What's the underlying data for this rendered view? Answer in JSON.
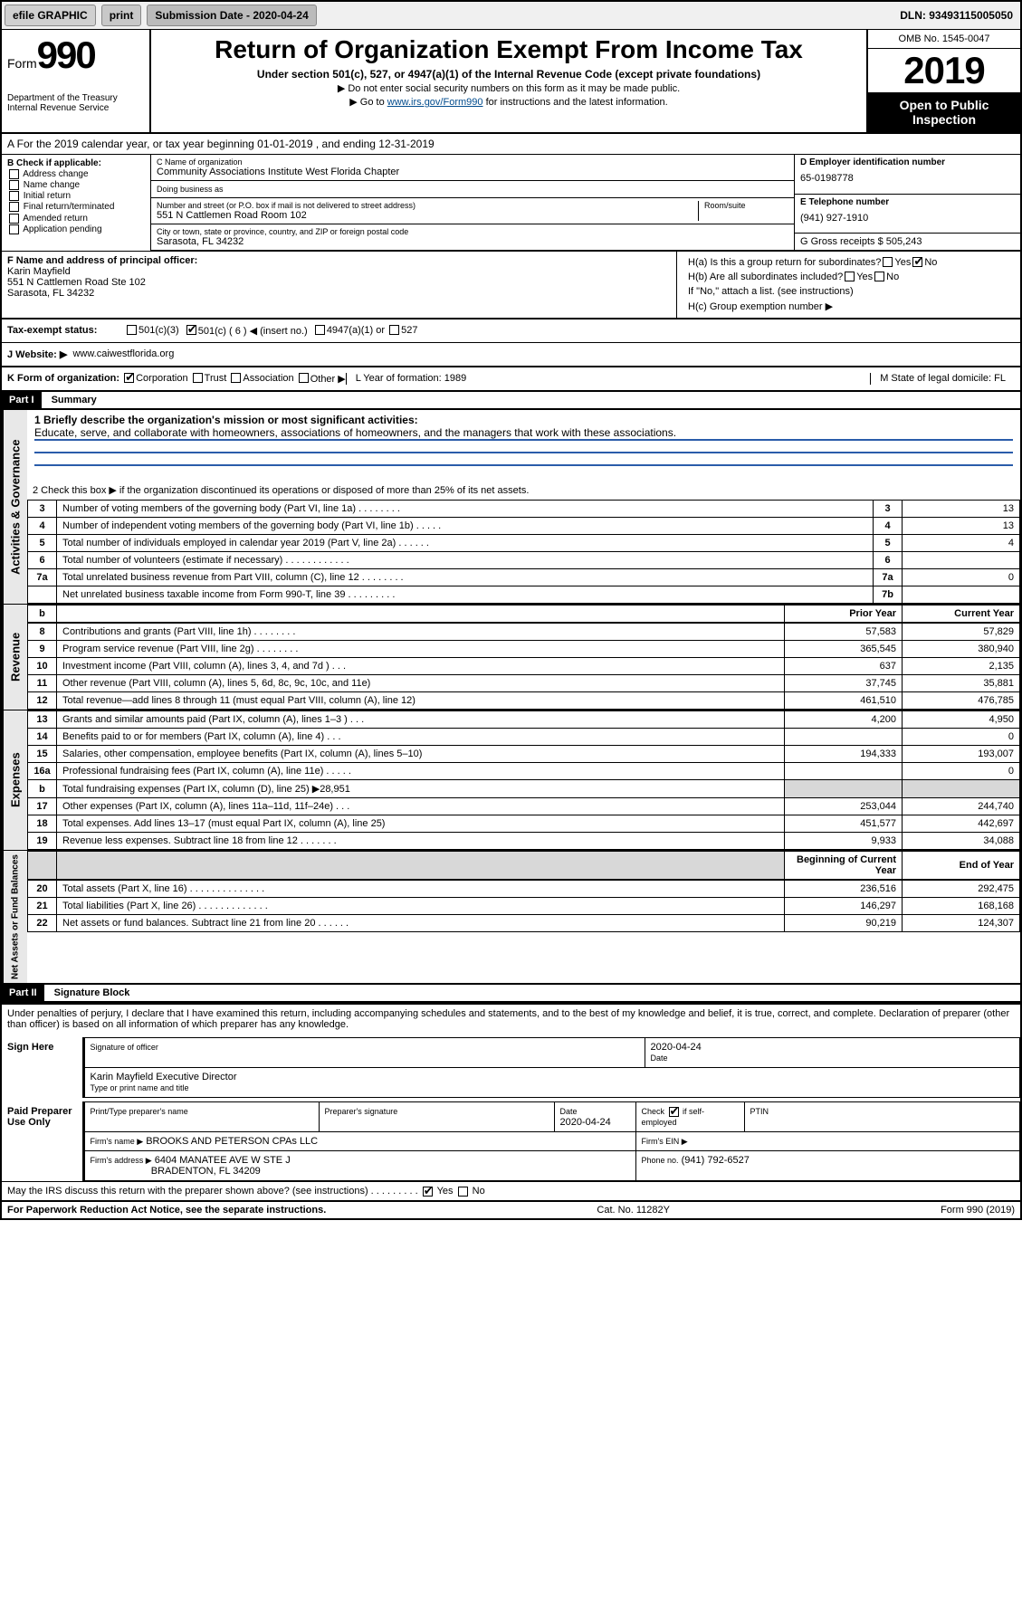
{
  "topbar": {
    "efile": "efile GRAPHIC",
    "print": "print",
    "subdate_label": "Submission Date - 2020-04-24",
    "dln": "DLN: 93493115005050"
  },
  "header": {
    "form_prefix": "Form",
    "form_number": "990",
    "dept": "Department of the Treasury",
    "irs": "Internal Revenue Service",
    "title": "Return of Organization Exempt From Income Tax",
    "subtitle": "Under section 501(c), 527, or 4947(a)(1) of the Internal Revenue Code (except private foundations)",
    "note1": "▶ Do not enter social security numbers on this form as it may be made public.",
    "note2_pre": "▶ Go to ",
    "note2_link": "www.irs.gov/Form990",
    "note2_post": " for instructions and the latest information.",
    "omb": "OMB No. 1545-0047",
    "year": "2019",
    "open": "Open to Public Inspection"
  },
  "line_a": "A   For the 2019 calendar year, or tax year beginning 01-01-2019   , and ending 12-31-2019",
  "checkb": {
    "title": "B Check if applicable:",
    "items": [
      "Address change",
      "Name change",
      "Initial return",
      "Final return/terminated",
      "Amended return",
      "Application pending"
    ]
  },
  "org": {
    "name_lbl": "C Name of organization",
    "name": "Community Associations Institute West Florida Chapter",
    "dba_lbl": "Doing business as",
    "addr_lbl": "Number and street (or P.O. box if mail is not delivered to street address)",
    "room_lbl": "Room/suite",
    "addr": "551 N Cattlemen Road Room 102",
    "city_lbl": "City or town, state or province, country, and ZIP or foreign postal code",
    "city": "Sarasota, FL  34232"
  },
  "d": {
    "ein_lbl": "D Employer identification number",
    "ein": "65-0198778",
    "phone_lbl": "E Telephone number",
    "phone": "(941) 927-1910",
    "gross_lbl": "G Gross receipts $ 505,243"
  },
  "f": {
    "lbl": "F  Name and address of principal officer:",
    "name": "Karin Mayfield",
    "addr1": "551 N Cattlemen Road Ste 102",
    "addr2": "Sarasota, FL  34232"
  },
  "h": {
    "ha": "H(a)  Is this a group return for subordinates?",
    "hb": "H(b)  Are all subordinates included?",
    "hb_note": "If \"No,\" attach a list. (see instructions)",
    "hc": "H(c)  Group exemption number ▶",
    "yes": "Yes",
    "no": "No"
  },
  "i": {
    "lbl": "Tax-exempt status:",
    "c3": "501(c)(3)",
    "c": "501(c) ( 6 ) ◀ (insert no.)",
    "a1": "4947(a)(1) or",
    "s527": "527"
  },
  "j": {
    "lbl": "J    Website: ▶",
    "val": "www.caiwestflorida.org"
  },
  "k": {
    "lbl": "K Form of organization:",
    "corp": "Corporation",
    "trust": "Trust",
    "assoc": "Association",
    "other": "Other ▶"
  },
  "l": {
    "lbl": "L Year of formation: 1989"
  },
  "m": {
    "lbl": "M State of legal domicile: FL"
  },
  "parts": {
    "p1": "Part I",
    "p1_title": "Summary",
    "p2": "Part II",
    "p2_title": "Signature Block"
  },
  "summary": {
    "line1": "1  Briefly describe the organization's mission or most significant activities:",
    "mission": "Educate, serve, and collaborate with homeowners, associations of homeowners, and the managers that work with these associations.",
    "line2": "2   Check this box ▶        if the organization discontinued its operations or disposed of more than 25% of its net assets.",
    "rows_top": [
      {
        "n": "3",
        "d": "Number of voting members of the governing body (Part VI, line 1a)  .   .   .   .   .   .   .   .",
        "k": "3",
        "v": "13"
      },
      {
        "n": "4",
        "d": "Number of independent voting members of the governing body (Part VI, line 1b)  .   .   .   .   .",
        "k": "4",
        "v": "13"
      },
      {
        "n": "5",
        "d": "Total number of individuals employed in calendar year 2019 (Part V, line 2a)  .   .   .   .   .   .",
        "k": "5",
        "v": "4"
      },
      {
        "n": "6",
        "d": "Total number of volunteers (estimate if necessary)  .   .   .   .   .   .   .   .   .   .   .   .",
        "k": "6",
        "v": ""
      },
      {
        "n": "7a",
        "d": "Total unrelated business revenue from Part VIII, column (C), line 12  .   .   .   .   .   .   .   .",
        "k": "7a",
        "v": "0"
      },
      {
        "n": "",
        "d": "Net unrelated business taxable income from Form 990-T, line 39  .   .   .   .   .   .   .   .   .",
        "k": "7b",
        "v": ""
      }
    ],
    "hdr_prior": "Prior Year",
    "hdr_curr": "Current Year",
    "revenue": [
      {
        "n": "8",
        "d": "Contributions and grants (Part VIII, line 1h)  .   .   .   .   .   .   .   .",
        "p": "57,583",
        "c": "57,829"
      },
      {
        "n": "9",
        "d": "Program service revenue (Part VIII, line 2g)  .   .   .   .   .   .   .   .",
        "p": "365,545",
        "c": "380,940"
      },
      {
        "n": "10",
        "d": "Investment income (Part VIII, column (A), lines 3, 4, and 7d )  .   .   .",
        "p": "637",
        "c": "2,135"
      },
      {
        "n": "11",
        "d": "Other revenue (Part VIII, column (A), lines 5, 6d, 8c, 9c, 10c, and 11e)",
        "p": "37,745",
        "c": "35,881"
      },
      {
        "n": "12",
        "d": "Total revenue—add lines 8 through 11 (must equal Part VIII, column (A), line 12)",
        "p": "461,510",
        "c": "476,785"
      }
    ],
    "expenses": [
      {
        "n": "13",
        "d": "Grants and similar amounts paid (Part IX, column (A), lines 1–3 )  .   .   .",
        "p": "4,200",
        "c": "4,950"
      },
      {
        "n": "14",
        "d": "Benefits paid to or for members (Part IX, column (A), line 4)  .   .   .",
        "p": "",
        "c": "0"
      },
      {
        "n": "15",
        "d": "Salaries, other compensation, employee benefits (Part IX, column (A), lines 5–10)",
        "p": "194,333",
        "c": "193,007"
      },
      {
        "n": "16a",
        "d": "Professional fundraising fees (Part IX, column (A), line 11e)  .   .   .   .   .",
        "p": "",
        "c": "0"
      },
      {
        "n": "b",
        "d": "Total fundraising expenses (Part IX, column (D), line 25) ▶28,951",
        "p": null,
        "c": null
      },
      {
        "n": "17",
        "d": "Other expenses (Part IX, column (A), lines 11a–11d, 11f–24e)  .   .   .",
        "p": "253,044",
        "c": "244,740"
      },
      {
        "n": "18",
        "d": "Total expenses. Add lines 13–17 (must equal Part IX, column (A), line 25)",
        "p": "451,577",
        "c": "442,697"
      },
      {
        "n": "19",
        "d": "Revenue less expenses. Subtract line 18 from line 12  .   .   .   .   .   .   .",
        "p": "9,933",
        "c": "34,088"
      }
    ],
    "hdr_beg": "Beginning of Current Year",
    "hdr_end": "End of Year",
    "netassets": [
      {
        "n": "20",
        "d": "Total assets (Part X, line 16)  .   .   .   .   .   .   .   .   .   .   .   .   .   .",
        "p": "236,516",
        "c": "292,475"
      },
      {
        "n": "21",
        "d": "Total liabilities (Part X, line 26)  .   .   .   .   .   .   .   .   .   .   .   .   .",
        "p": "146,297",
        "c": "168,168"
      },
      {
        "n": "22",
        "d": "Net assets or fund balances. Subtract line 21 from line 20  .   .   .   .   .   .",
        "p": "90,219",
        "c": "124,307"
      }
    ]
  },
  "signature": {
    "decl": "Under penalties of perjury, I declare that I have examined this return, including accompanying schedules and statements, and to the best of my knowledge and belief, it is true, correct, and complete. Declaration of preparer (other than officer) is based on all information of which preparer has any knowledge.",
    "sign_here": "Sign Here",
    "sig_officer": "Signature of officer",
    "date": "Date",
    "date_val": "2020-04-24",
    "officer": "Karin Mayfield  Executive Director",
    "officer_sub": "Type or print name and title",
    "paid": "Paid Preparer Use Only",
    "prep_name_lbl": "Print/Type preparer's name",
    "prep_sig_lbl": "Preparer's signature",
    "prep_date_lbl": "Date",
    "prep_date": "2020-04-24",
    "check_lbl": "Check        if self-employed",
    "ptin": "PTIN",
    "firm_name_lbl": "Firm's name    ▶",
    "firm_name": "BROOKS AND PETERSON CPAs LLC",
    "firm_ein": "Firm's EIN ▶",
    "firm_addr_lbl": "Firm's address ▶",
    "firm_addr": "6404 MANATEE AVE W STE J",
    "firm_city": "BRADENTON, FL  34209",
    "firm_phone_lbl": "Phone no.",
    "firm_phone": "(941) 792-6527",
    "discuss": "May the IRS discuss this return with the preparer shown above? (see instructions)   .    .    .    .    .    .    .    .    .   "
  },
  "footer": {
    "pra": "For Paperwork Reduction Act Notice, see the separate instructions.",
    "cat": "Cat. No. 11282Y",
    "form": "Form 990 (2019)"
  },
  "colors": {
    "link": "#004b8d",
    "blue_line": "#2a5caa"
  }
}
